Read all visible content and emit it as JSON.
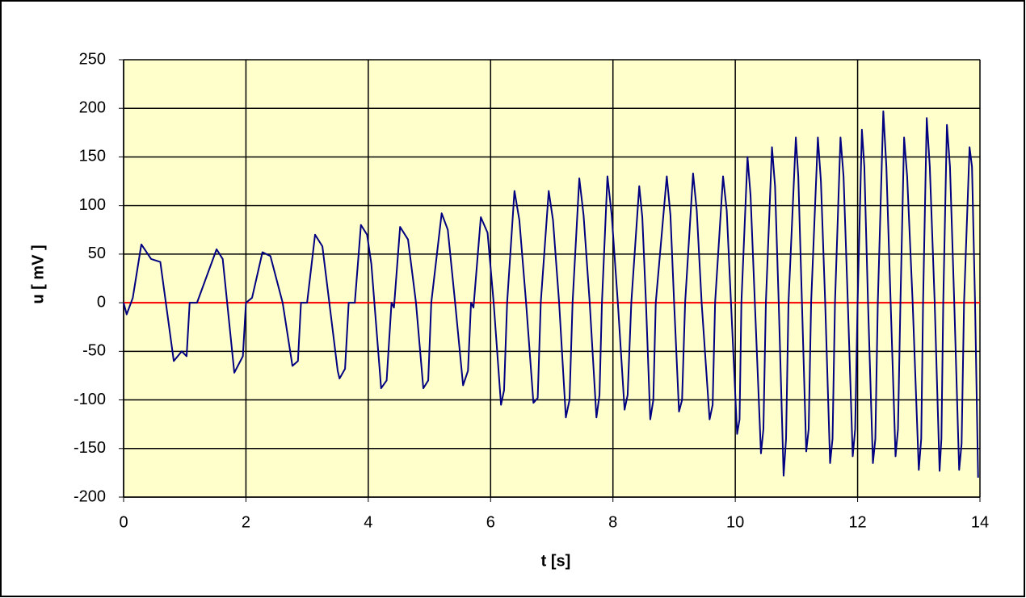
{
  "chart_data": {
    "type": "line",
    "xlabel": "t [s]",
    "ylabel": "u [ mV ]",
    "x": [
      0,
      0.05,
      0.15,
      0.29,
      0.45,
      0.6,
      0.82,
      0.95,
      1.03,
      1.08,
      1.2,
      1.52,
      1.62,
      1.81,
      1.95,
      2.0,
      2.1,
      2.27,
      2.4,
      2.6,
      2.76,
      2.85,
      2.9,
      3.0,
      3.13,
      3.25,
      3.5,
      3.53,
      3.62,
      3.68,
      3.78,
      3.88,
      3.98,
      4.05,
      4.21,
      4.3,
      4.38,
      4.42,
      4.52,
      4.65,
      4.78,
      4.9,
      4.98,
      5.03,
      5.2,
      5.3,
      5.42,
      5.55,
      5.63,
      5.68,
      5.72,
      5.84,
      5.95,
      6.05,
      6.17,
      6.22,
      6.27,
      6.39,
      6.47,
      6.58,
      6.7,
      6.77,
      6.82,
      6.95,
      7.02,
      7.12,
      7.23,
      7.29,
      7.34,
      7.45,
      7.52,
      7.62,
      7.73,
      7.78,
      7.82,
      7.91,
      7.98,
      8.08,
      8.19,
      8.24,
      8.3,
      8.43,
      8.48,
      8.54,
      8.61,
      8.66,
      8.7,
      8.88,
      8.94,
      9.0,
      9.08,
      9.13,
      9.18,
      9.31,
      9.37,
      9.45,
      9.58,
      9.63,
      9.67,
      9.8,
      9.86,
      9.93,
      10.03,
      10.07,
      10.1,
      10.2,
      10.25,
      10.32,
      10.42,
      10.46,
      10.5,
      10.6,
      10.65,
      10.71,
      10.79,
      10.83,
      10.87,
      10.99,
      11.03,
      11.09,
      11.16,
      11.2,
      11.24,
      11.35,
      11.4,
      11.47,
      11.55,
      11.59,
      11.63,
      11.72,
      11.77,
      11.84,
      11.92,
      11.96,
      12.0,
      12.07,
      12.11,
      12.17,
      12.25,
      12.29,
      12.33,
      12.42,
      12.47,
      12.54,
      12.62,
      12.66,
      12.7,
      12.76,
      12.81,
      12.9,
      13.0,
      13.04,
      13.07,
      13.13,
      13.18,
      13.26,
      13.34,
      13.37,
      13.4,
      13.46,
      13.51,
      13.58,
      13.66,
      13.7,
      13.74,
      13.83,
      13.87,
      13.92,
      13.97
    ],
    "values": [
      0,
      -12,
      5,
      60,
      45,
      42,
      -60,
      -50,
      -55,
      0,
      0,
      55,
      45,
      -72,
      -55,
      0,
      5,
      52,
      48,
      0,
      -65,
      -60,
      0,
      0,
      70,
      58,
      -70,
      -78,
      -68,
      0,
      0,
      80,
      70,
      40,
      -88,
      -80,
      0,
      -5,
      78,
      65,
      0,
      -88,
      -80,
      0,
      92,
      75,
      0,
      -85,
      -70,
      0,
      -5,
      88,
      72,
      0,
      -105,
      -90,
      0,
      115,
      85,
      0,
      -103,
      -98,
      0,
      115,
      85,
      0,
      -118,
      -100,
      0,
      128,
      90,
      0,
      -118,
      -95,
      0,
      130,
      90,
      0,
      -110,
      -95,
      0,
      120,
      88,
      0,
      -120,
      -100,
      0,
      130,
      90,
      0,
      -112,
      -100,
      0,
      133,
      95,
      0,
      -120,
      -105,
      0,
      130,
      95,
      0,
      -135,
      -120,
      0,
      150,
      110,
      0,
      -155,
      -130,
      0,
      160,
      120,
      0,
      -178,
      -140,
      0,
      170,
      130,
      0,
      -153,
      -130,
      0,
      170,
      125,
      0,
      -165,
      -140,
      0,
      170,
      130,
      0,
      -158,
      -130,
      0,
      178,
      140,
      0,
      -165,
      -140,
      0,
      197,
      140,
      0,
      -158,
      -130,
      0,
      170,
      130,
      0,
      -172,
      -140,
      0,
      190,
      140,
      0,
      -173,
      -140,
      0,
      183,
      140,
      0,
      -172,
      -145,
      0,
      160,
      140,
      0,
      -180
    ],
    "color": "#000080",
    "reference_line": {
      "value": 0,
      "color": "#ff0000"
    },
    "xlim": [
      0,
      14
    ],
    "xticks": [
      0,
      2,
      4,
      6,
      8,
      10,
      12,
      14
    ],
    "ylim": [
      -200,
      250
    ],
    "yticks": [
      -200,
      -150,
      -100,
      -50,
      0,
      50,
      100,
      150,
      200,
      250
    ],
    "grid": true,
    "plot_background": "#ffffcc"
  }
}
